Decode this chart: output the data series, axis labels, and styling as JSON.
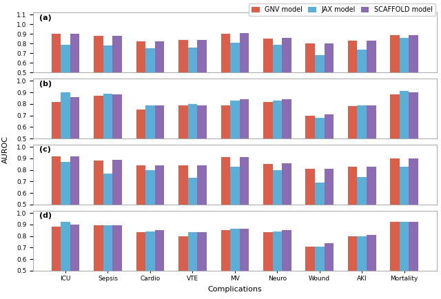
{
  "categories": [
    "ICU",
    "Sepsis",
    "Cardio",
    "VTE",
    "MV",
    "Neuro",
    "Wound",
    "AKI",
    "Mortality"
  ],
  "subplot_labels": [
    "(a)",
    "(b)",
    "(c)",
    "(d)"
  ],
  "models": [
    "GNV model",
    "JAX model",
    "SCAFFOLD model"
  ],
  "colors": [
    "#d95f4b",
    "#5bafd6",
    "#8b6bb1"
  ],
  "ylim_a": [
    0.5,
    1.12
  ],
  "ylim_bcd": [
    0.5,
    1.02
  ],
  "yticks_a": [
    0.5,
    0.6,
    0.7,
    0.8,
    0.9,
    1.0,
    1.1
  ],
  "yticks_bcd": [
    0.5,
    0.6,
    0.7,
    0.8,
    0.9,
    1.0
  ],
  "data": {
    "a": {
      "GNV": [
        0.9,
        0.88,
        0.82,
        0.84,
        0.9,
        0.85,
        0.8,
        0.83,
        0.89
      ],
      "JAX": [
        0.79,
        0.78,
        0.75,
        0.76,
        0.81,
        0.79,
        0.68,
        0.74,
        0.86
      ],
      "SCAFFOLD": [
        0.9,
        0.88,
        0.82,
        0.84,
        0.91,
        0.86,
        0.8,
        0.83,
        0.89
      ]
    },
    "b": {
      "GNV": [
        0.82,
        0.87,
        0.75,
        0.79,
        0.79,
        0.82,
        0.7,
        0.78,
        0.88
      ],
      "JAX": [
        0.9,
        0.89,
        0.79,
        0.8,
        0.83,
        0.83,
        0.68,
        0.79,
        0.91
      ],
      "SCAFFOLD": [
        0.86,
        0.88,
        0.79,
        0.79,
        0.84,
        0.84,
        0.71,
        0.79,
        0.9
      ]
    },
    "c": {
      "GNV": [
        0.92,
        0.88,
        0.84,
        0.84,
        0.91,
        0.85,
        0.81,
        0.83,
        0.9
      ],
      "JAX": [
        0.87,
        0.77,
        0.8,
        0.73,
        0.83,
        0.8,
        0.69,
        0.74,
        0.83
      ],
      "SCAFFOLD": [
        0.92,
        0.89,
        0.84,
        0.84,
        0.91,
        0.86,
        0.81,
        0.83,
        0.9
      ]
    },
    "d": {
      "GNV": [
        0.88,
        0.89,
        0.83,
        0.8,
        0.85,
        0.83,
        0.71,
        0.8,
        0.92
      ],
      "JAX": [
        0.92,
        0.89,
        0.84,
        0.83,
        0.86,
        0.84,
        0.71,
        0.8,
        0.92
      ],
      "SCAFFOLD": [
        0.9,
        0.89,
        0.85,
        0.83,
        0.86,
        0.85,
        0.74,
        0.81,
        0.92
      ]
    }
  },
  "ylabel": "AUROC",
  "xlabel": "Complications",
  "bar_width": 0.22,
  "title_fontsize": 8,
  "axis_fontsize": 8,
  "legend_fontsize": 7,
  "tick_fontsize": 6.5
}
